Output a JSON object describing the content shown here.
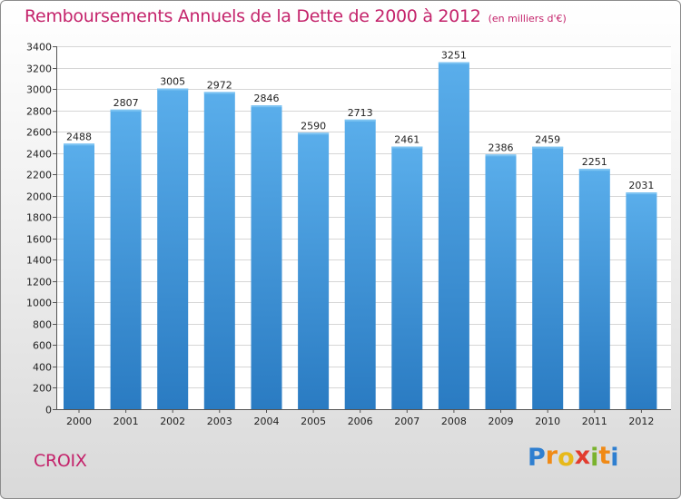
{
  "header": {
    "title": "Remboursements Annuels de la Dette de 2000 à 2012",
    "subtitle": "(en milliers d'€)"
  },
  "footer": {
    "commune": "CROIX",
    "brand_letters": [
      "P",
      "r",
      "o",
      "x",
      "i",
      "t",
      "i"
    ],
    "brand_colors": [
      "#2f7fd0",
      "#f08a16",
      "#e7b91a",
      "#e23b2e",
      "#7ab32e",
      "#f08a16",
      "#2f7fd0"
    ]
  },
  "colors": {
    "title": "#c4236b",
    "bar_top": "#5aaeeb",
    "bar_bottom": "#2a7bc2",
    "grid": "#d6d6d6"
  },
  "chart_data": {
    "type": "bar",
    "title": "Remboursements Annuels de la Dette de 2000 à 2012",
    "subtitle": "(en milliers d'€)",
    "xlabel": "",
    "ylabel": "",
    "categories": [
      "2000",
      "2001",
      "2002",
      "2003",
      "2004",
      "2005",
      "2006",
      "2007",
      "2008",
      "2009",
      "2010",
      "2011",
      "2012"
    ],
    "values": [
      2488,
      2807,
      3005,
      2972,
      2846,
      2590,
      2713,
      2461,
      3251,
      2386,
      2459,
      2251,
      2031
    ],
    "ylim": [
      0,
      3400
    ],
    "yticks": [
      0,
      200,
      400,
      600,
      800,
      1000,
      1200,
      1400,
      1600,
      1800,
      2000,
      2200,
      2400,
      2600,
      2800,
      3000,
      3200,
      3400
    ],
    "grid": true,
    "legend": "none"
  }
}
